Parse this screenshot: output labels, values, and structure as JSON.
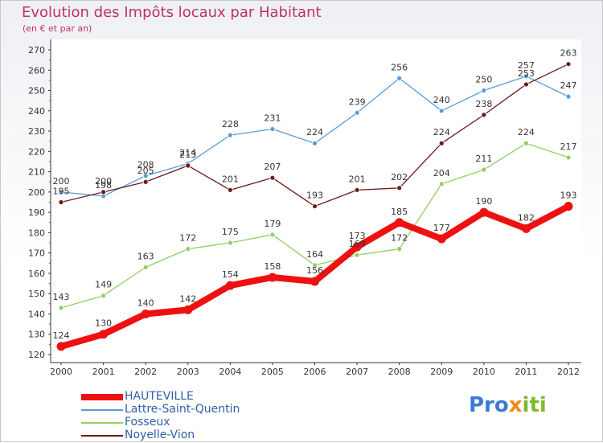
{
  "header": {
    "title": "Evolution des Impôts locaux par Habitant",
    "subtitle": "(en € et par an)"
  },
  "logo": {
    "part1": "Pro",
    "part2": "x",
    "part3": "iti"
  },
  "chart_data": {
    "type": "line",
    "title": "Evolution des Impôts locaux par Habitant",
    "subtitle": "(en € et par an)",
    "xlabel": "",
    "ylabel": "",
    "categories": [
      "2000",
      "2001",
      "2002",
      "2003",
      "2004",
      "2005",
      "2006",
      "2007",
      "2008",
      "2009",
      "2010",
      "2011",
      "2012"
    ],
    "ylim": [
      120,
      270
    ],
    "yticks": [
      120,
      130,
      140,
      150,
      160,
      170,
      180,
      190,
      200,
      210,
      220,
      230,
      240,
      250,
      260,
      270
    ],
    "grid": false,
    "legend_position": "bottom-left",
    "series": [
      {
        "name": "HAUTEVILLE",
        "color": "#ee1111",
        "values": [
          124,
          130,
          140,
          142,
          154,
          158,
          156,
          173,
          185,
          177,
          190,
          182,
          193
        ]
      },
      {
        "name": "Lattre-Saint-Quentin",
        "color": "#5b9bd5",
        "values": [
          200,
          198,
          208,
          214,
          228,
          231,
          224,
          239,
          256,
          240,
          250,
          257,
          247
        ]
      },
      {
        "name": "Fosseux",
        "color": "#90d060",
        "values": [
          143,
          149,
          163,
          172,
          175,
          179,
          164,
          169,
          172,
          204,
          211,
          224,
          217
        ]
      },
      {
        "name": "Noyelle-Vion",
        "color": "#6b1a1a",
        "values": [
          195,
          200,
          205,
          213,
          201,
          207,
          193,
          201,
          202,
          224,
          238,
          253,
          263
        ]
      }
    ]
  }
}
